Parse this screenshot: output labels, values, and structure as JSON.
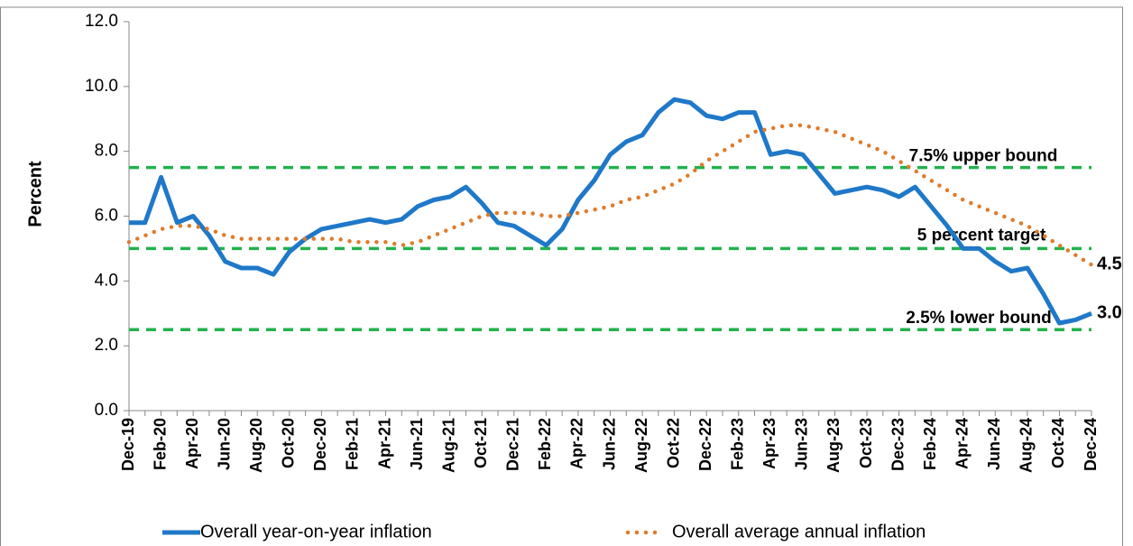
{
  "chart_data": {
    "type": "line",
    "y_label": "Percent",
    "categories": [
      "Dec-19",
      null,
      "Feb-20",
      null,
      "Apr-20",
      null,
      "Jun-20",
      null,
      "Aug-20",
      null,
      "Oct-20",
      null,
      "Dec-20",
      null,
      "Feb-21",
      null,
      "Apr-21",
      null,
      "Jun-21",
      null,
      "Aug-21",
      null,
      "Oct-21",
      null,
      "Dec-21",
      null,
      "Feb-22",
      null,
      "Apr-22",
      null,
      "Jun-22",
      null,
      "Aug-22",
      null,
      "Oct-22",
      null,
      "Dec-22",
      null,
      "Feb-23",
      null,
      "Apr-23",
      null,
      "Jun-23",
      null,
      "Aug-23",
      null,
      "Oct-23",
      null,
      "Dec-23",
      null,
      "Feb-24",
      null,
      "Apr-24",
      null,
      "Jun-24",
      null,
      "Aug-24",
      null,
      "Oct-24",
      null,
      "Dec-24"
    ],
    "series": [
      {
        "name": "Overall year-on-year inflation",
        "color": "#1f78c8",
        "style": "solid",
        "values": [
          5.8,
          5.8,
          7.2,
          5.8,
          6.0,
          5.4,
          4.6,
          4.4,
          4.4,
          4.2,
          4.9,
          5.3,
          5.6,
          5.7,
          5.8,
          5.9,
          5.8,
          5.9,
          6.3,
          6.5,
          6.6,
          6.9,
          6.4,
          5.8,
          5.7,
          5.4,
          5.1,
          5.6,
          6.5,
          7.1,
          7.9,
          8.3,
          8.5,
          9.2,
          9.6,
          9.5,
          9.1,
          9.0,
          9.2,
          9.2,
          7.9,
          8.0,
          7.9,
          7.3,
          6.7,
          6.8,
          6.9,
          6.8,
          6.6,
          6.9,
          6.3,
          5.7,
          5.0,
          5.0,
          4.6,
          4.3,
          4.4,
          3.6,
          2.7,
          2.8,
          3.0
        ],
        "value_labels": [
          null,
          null,
          null,
          null,
          null,
          null,
          null,
          null,
          null,
          null,
          null,
          null,
          null,
          null,
          null,
          null,
          null,
          null,
          null,
          null,
          null,
          null,
          null,
          null,
          null,
          null,
          null,
          null,
          null,
          null,
          null,
          null,
          null,
          null,
          null,
          null,
          null,
          null,
          null,
          null,
          null,
          null,
          null,
          null,
          null,
          null,
          null,
          null,
          null,
          null,
          null,
          null,
          null,
          null,
          null,
          null,
          null,
          null,
          null,
          null,
          "3.0"
        ],
        "label_color": "#2a5caa"
      },
      {
        "name": "Overall average annual inflation",
        "color": "#e07b2a",
        "style": "dotted",
        "values": [
          5.2,
          5.4,
          5.6,
          5.7,
          5.7,
          5.6,
          5.4,
          5.3,
          5.3,
          5.3,
          5.3,
          5.3,
          5.3,
          5.3,
          5.2,
          5.2,
          5.2,
          5.1,
          5.2,
          5.4,
          5.6,
          5.8,
          6.0,
          6.1,
          6.1,
          6.1,
          6.0,
          6.0,
          6.1,
          6.2,
          6.3,
          6.5,
          6.6,
          6.8,
          7.0,
          7.3,
          7.7,
          8.0,
          8.3,
          8.6,
          8.7,
          8.8,
          8.8,
          8.7,
          8.6,
          8.4,
          8.2,
          8.0,
          7.7,
          7.4,
          7.1,
          6.8,
          6.5,
          6.3,
          6.1,
          5.9,
          5.7,
          5.4,
          5.1,
          4.8,
          4.5
        ],
        "value_labels": [
          null,
          null,
          null,
          null,
          null,
          null,
          null,
          null,
          null,
          null,
          null,
          null,
          null,
          null,
          null,
          null,
          null,
          null,
          null,
          null,
          null,
          null,
          null,
          null,
          null,
          null,
          null,
          null,
          null,
          null,
          null,
          null,
          null,
          null,
          null,
          null,
          null,
          null,
          null,
          null,
          null,
          null,
          null,
          null,
          null,
          null,
          null,
          null,
          null,
          null,
          null,
          null,
          null,
          null,
          null,
          null,
          null,
          null,
          null,
          null,
          "4.5"
        ],
        "label_color": "#b5652a"
      }
    ],
    "reference_lines": [
      {
        "value": 7.5,
        "label": "7.5% upper bound"
      },
      {
        "value": 5.0,
        "label": "5 percent target"
      },
      {
        "value": 2.5,
        "label": "2.5% lower bound"
      }
    ],
    "reference_color": "#22b24c",
    "ylim": [
      0,
      12
    ],
    "yticks": [
      {
        "value": 0,
        "label": "0.0"
      },
      {
        "value": 2,
        "label": "2.0"
      },
      {
        "value": 4,
        "label": "4.0"
      },
      {
        "value": 6,
        "label": "6.0"
      },
      {
        "value": 8,
        "label": "8.0"
      },
      {
        "value": 10,
        "label": "10.0"
      },
      {
        "value": 12,
        "label": "12.0"
      }
    ],
    "grid": false,
    "legend": "bottom"
  }
}
